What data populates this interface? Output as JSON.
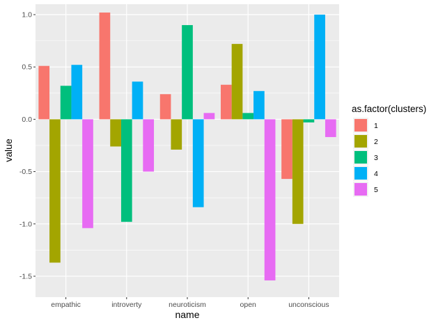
{
  "chart_data": {
    "type": "bar",
    "xlabel": "name",
    "ylabel": "value",
    "categories": [
      "empathic",
      "introverty",
      "neuroticism",
      "open",
      "unconscious"
    ],
    "ylim": [
      -1.7,
      1.1
    ],
    "yticks": [
      1.0,
      0.5,
      0.0,
      -0.5,
      -1.0,
      -1.5
    ],
    "ytick_labels": [
      "1.0",
      "0.5",
      "0.0",
      "-0.5",
      "-1.0",
      "-1.5"
    ],
    "legend": {
      "title": "as.factor(clusters)",
      "position": "right"
    },
    "series": [
      {
        "name": "1",
        "color": "#F8766D",
        "values": [
          0.51,
          1.02,
          0.24,
          0.33,
          -0.57
        ]
      },
      {
        "name": "2",
        "color": "#A3A500",
        "values": [
          -1.37,
          -0.26,
          -0.29,
          0.72,
          -1.0
        ]
      },
      {
        "name": "3",
        "color": "#00BF7D",
        "values": [
          0.32,
          -0.98,
          0.9,
          0.06,
          -0.03
        ]
      },
      {
        "name": "4",
        "color": "#00B0F6",
        "values": [
          0.52,
          0.36,
          -0.84,
          0.27,
          1.0
        ]
      },
      {
        "name": "5",
        "color": "#E76BF3",
        "values": [
          -1.04,
          -0.5,
          0.06,
          -1.54,
          -0.17
        ]
      }
    ]
  }
}
